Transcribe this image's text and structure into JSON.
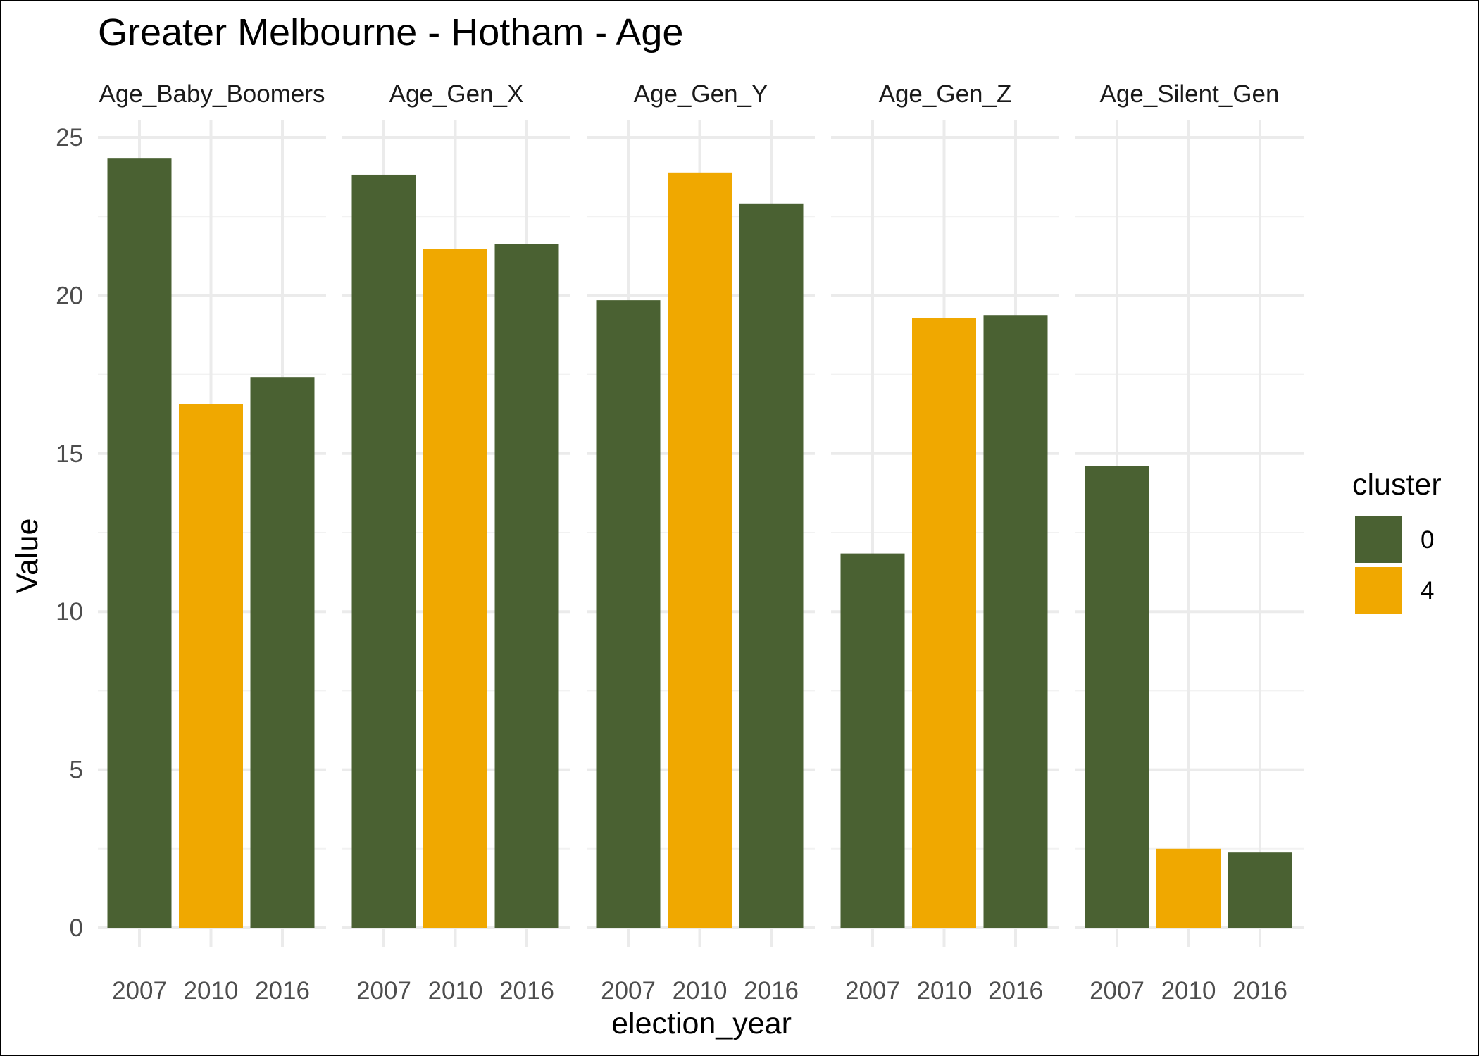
{
  "chart_data": {
    "type": "bar",
    "title": "Greater Melbourne - Hotham - Age",
    "xlabel": "election_year",
    "ylabel": "Value",
    "ylim": [
      0,
      25
    ],
    "yticks": [
      "0",
      "5",
      "10",
      "15",
      "20",
      "25"
    ],
    "categories": [
      "2007",
      "2010",
      "2016"
    ],
    "grid": true,
    "legend": {
      "title": "cluster",
      "placement": "right",
      "entries": [
        {
          "label": "0",
          "color": "#4a6132"
        },
        {
          "label": "4",
          "color": "#f0a800"
        }
      ]
    },
    "facets": [
      {
        "name": "Age_Baby_Boomers",
        "values": [
          24.35,
          16.57,
          17.42
        ],
        "cluster": [
          "0",
          "4",
          "0"
        ]
      },
      {
        "name": "Age_Gen_X",
        "values": [
          23.82,
          21.46,
          21.62
        ],
        "cluster": [
          "0",
          "4",
          "0"
        ]
      },
      {
        "name": "Age_Gen_Y",
        "values": [
          19.85,
          23.89,
          22.91
        ],
        "cluster": [
          "0",
          "4",
          "0"
        ]
      },
      {
        "name": "Age_Gen_Z",
        "values": [
          11.84,
          19.28,
          19.38
        ],
        "cluster": [
          "0",
          "4",
          "0"
        ]
      },
      {
        "name": "Age_Silent_Gen",
        "values": [
          14.6,
          2.5,
          2.38
        ],
        "cluster": [
          "0",
          "4",
          "0"
        ]
      }
    ]
  }
}
